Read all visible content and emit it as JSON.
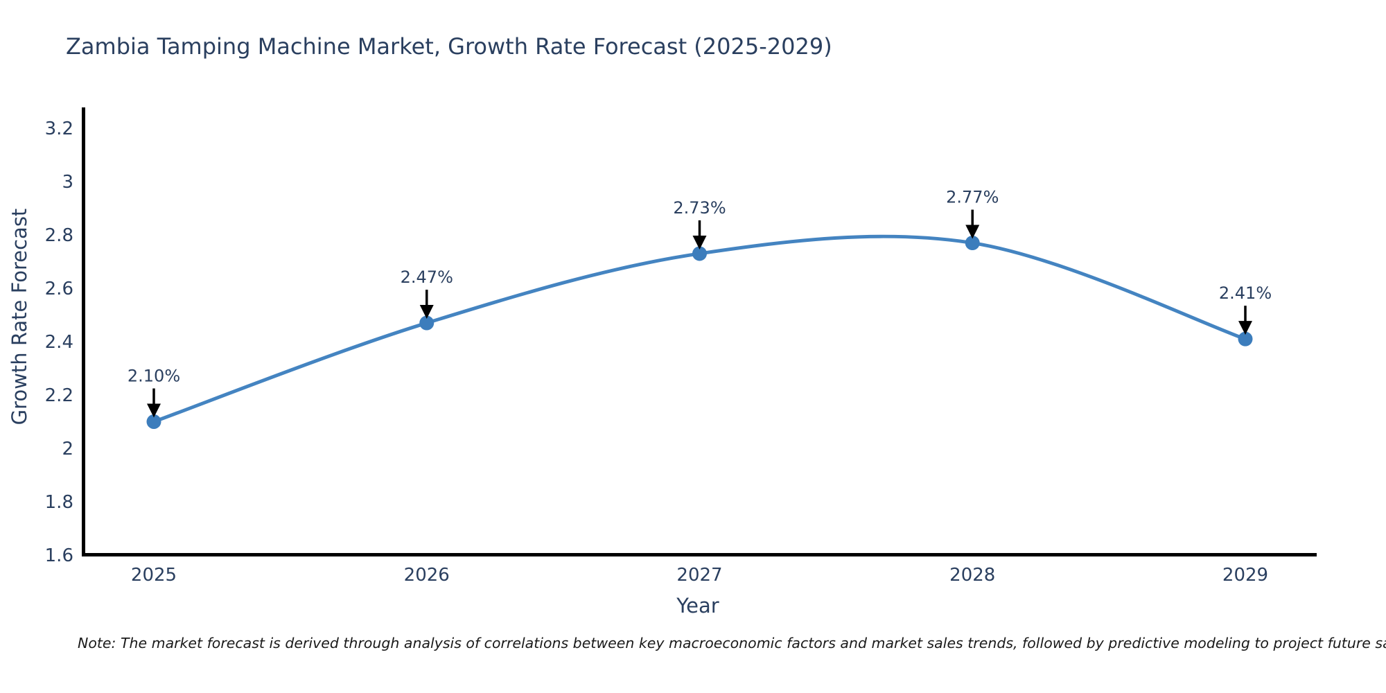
{
  "title": "Zambia Tamping Machine Market, Growth Rate Forecast (2025-2029)",
  "note": "Note: The market forecast is derived through analysis of correlations between key macroeconomic factors and market sales trends, followed by predictive modeling to project future sales",
  "chart_data": {
    "type": "line",
    "title": "Zambia Tamping Machine Market, Growth Rate Forecast (2025-2029)",
    "xlabel": "Year",
    "ylabel": "Growth Rate Forecast",
    "categories": [
      "2025",
      "2026",
      "2027",
      "2028",
      "2029"
    ],
    "values": [
      2.1,
      2.47,
      2.73,
      2.77,
      2.41
    ],
    "point_labels": [
      "2.10%",
      "2.47%",
      "2.73%",
      "2.77%",
      "2.41%"
    ],
    "ylim": [
      1.6,
      3.28
    ],
    "ytick_values": [
      1.6,
      1.8,
      2.0,
      2.2,
      2.4,
      2.6,
      2.8,
      3.0,
      3.2
    ],
    "ytick_labels": [
      "1.6",
      "1.8",
      "2",
      "2.2",
      "2.4",
      "2.6",
      "2.8",
      "3",
      "3.2"
    ],
    "grid": false,
    "legend": "none",
    "curve": "spline",
    "colors": {
      "line": "#4484C1",
      "marker": "#3C7DBC",
      "axis": "#000000",
      "text": "#2a3f5f",
      "annotation_arrow": "#000000"
    }
  }
}
